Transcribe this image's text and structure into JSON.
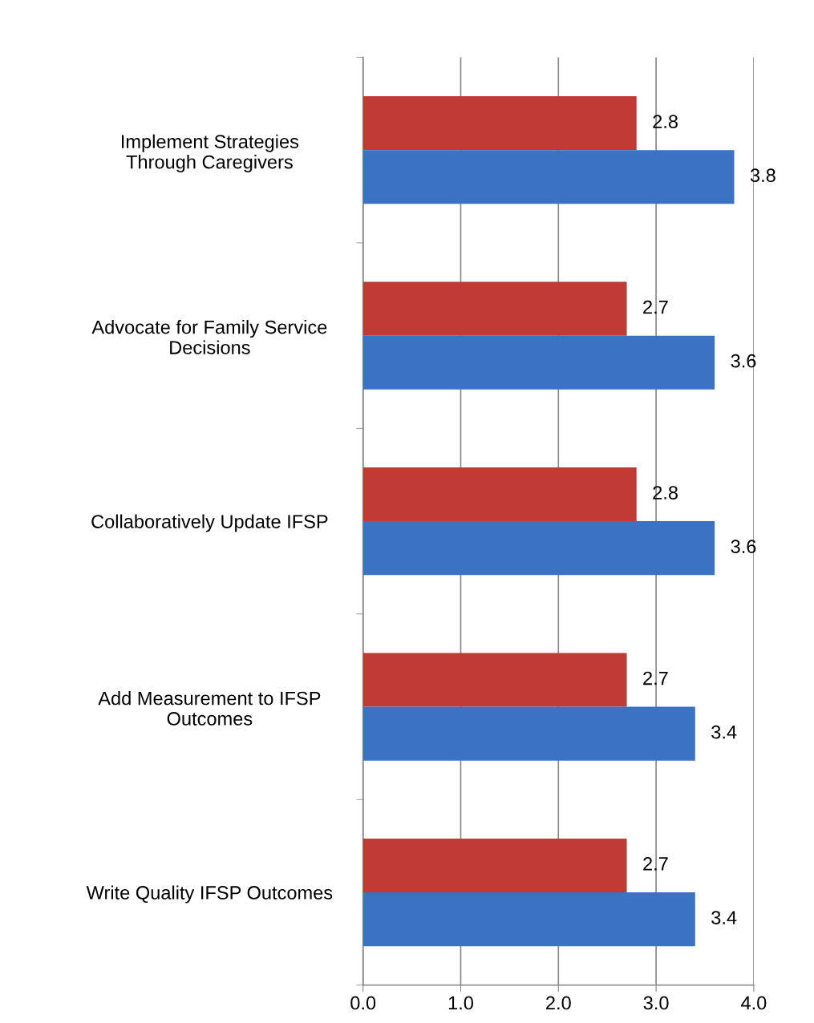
{
  "chart_data": {
    "type": "bar",
    "orientation": "horizontal",
    "categories": [
      "Implement Strategies\nThrough Caregivers",
      "Advocate for Family Service\nDecisions",
      "Collaboratively Update IFSP",
      "Add Measurement to IFSP\nOutcomes",
      "Write Quality IFSP Outcomes"
    ],
    "series": [
      {
        "color": "#c23a36",
        "values": [
          2.8,
          2.7,
          2.8,
          2.7,
          2.7
        ]
      },
      {
        "color": "#3b73c2",
        "values": [
          3.8,
          3.6,
          3.6,
          3.4,
          3.4
        ]
      }
    ],
    "xlim": [
      0,
      4
    ],
    "xticks": [
      {
        "value": 0,
        "label": "0.0"
      },
      {
        "value": 1,
        "label": "1.0"
      },
      {
        "value": 2,
        "label": "2.0"
      },
      {
        "value": 3,
        "label": "3.0"
      },
      {
        "value": 4,
        "label": "4.0"
      }
    ],
    "grid": "x",
    "data_labels": true
  }
}
